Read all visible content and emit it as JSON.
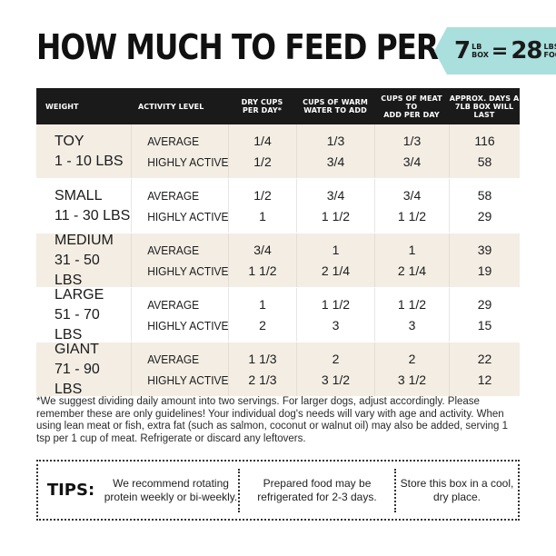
{
  "title": "HOW MUCH TO FEED PER DAY",
  "badge": {
    "lb_value": "7",
    "lb_unit": "LB",
    "box": "BOX",
    "equals": "=",
    "food_value": "28",
    "food_line1": "LBS of",
    "food_line2": "FOOD!",
    "color": "#a9dfdc"
  },
  "table": {
    "headers": [
      [
        "WEIGHT"
      ],
      [
        "ACTIVITY LEVEL"
      ],
      [
        "DRY CUPS",
        "PER DAY*"
      ],
      [
        "CUPS OF WARM",
        "WATER TO ADD"
      ],
      [
        "CUPS OF MEAT TO",
        "ADD PER DAY"
      ],
      [
        "APPROX. DAYS A",
        "7LB BOX WILL LAST"
      ]
    ],
    "rows": [
      {
        "size": "TOY",
        "range": "1 - 10 LBS",
        "avg": {
          "label": "AVERAGE",
          "dry": "1/4",
          "water": "1/3",
          "meat": "1/3",
          "days": "116"
        },
        "high": {
          "label": "HIGHLY ACTIVE",
          "dry": "1/2",
          "water": "3/4",
          "meat": "3/4",
          "days": "58"
        }
      },
      {
        "size": "SMALL",
        "range": "11 - 30 LBS",
        "avg": {
          "label": "AVERAGE",
          "dry": "1/2",
          "water": "3/4",
          "meat": "3/4",
          "days": "58"
        },
        "high": {
          "label": "HIGHLY ACTIVE",
          "dry": "1",
          "water": "1 1/2",
          "meat": "1 1/2",
          "days": "29"
        }
      },
      {
        "size": "MEDIUM",
        "range": "31 - 50 LBS",
        "avg": {
          "label": "AVERAGE",
          "dry": "3/4",
          "water": "1",
          "meat": "1",
          "days": "39"
        },
        "high": {
          "label": "HIGHLY ACTIVE",
          "dry": "1 1/2",
          "water": "2 1/4",
          "meat": "2 1/4",
          "days": "19"
        }
      },
      {
        "size": "LARGE",
        "range": "51 - 70 LBS",
        "avg": {
          "label": "AVERAGE",
          "dry": "1",
          "water": "1 1/2",
          "meat": "1 1/2",
          "days": "29"
        },
        "high": {
          "label": "HIGHLY ACTIVE",
          "dry": "2",
          "water": "3",
          "meat": "3",
          "days": "15"
        }
      },
      {
        "size": "GIANT",
        "range": "71 - 90 LBS",
        "avg": {
          "label": "AVERAGE",
          "dry": "1 1/3",
          "water": "2",
          "meat": "2",
          "days": "22"
        },
        "high": {
          "label": "HIGHLY ACTIVE",
          "dry": "2 1/3",
          "water": "3 1/2",
          "meat": "3 1/2",
          "days": "12"
        }
      }
    ]
  },
  "footnote": "*We suggest dividing daily amount into two servings. For larger dogs, adjust accordingly. Please remember these are only guidelines! Your individual dog's needs will vary with age and activity. When using lean meat or fish, extra fat (such as salmon, coconut or walnut oil) may also be added, serving 1 tsp per 1 cup of meat. Refrigerate or discard any leftovers.",
  "tips": {
    "label": "TIPS:",
    "items": [
      "We recommend rotating protein weekly or bi-weekly.",
      "Prepared food may be refrigerated for 2-3 days.",
      "Store this box in a cool, dry place."
    ]
  }
}
